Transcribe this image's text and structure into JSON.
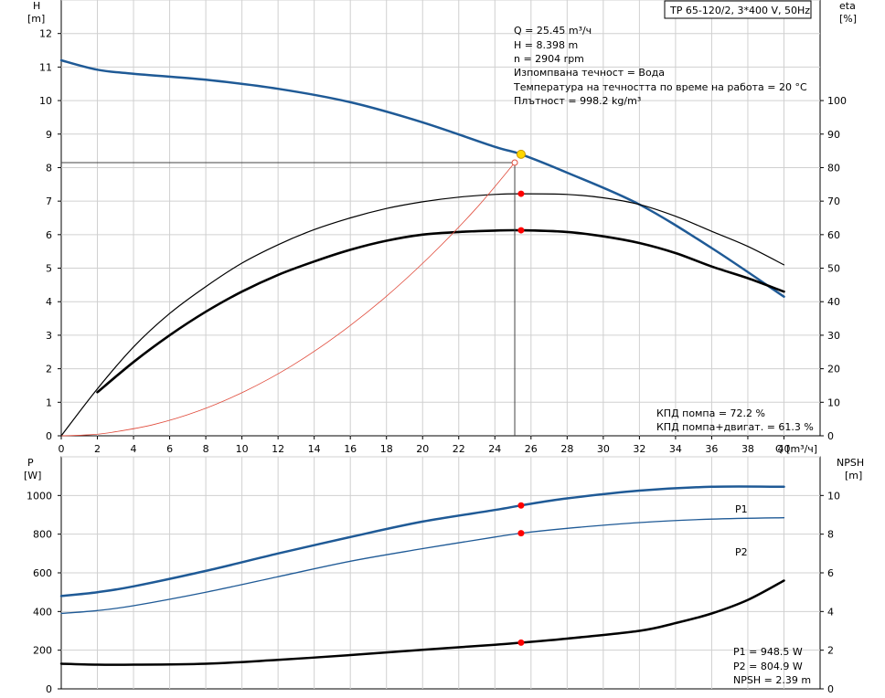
{
  "chart_data": [
    {
      "type": "line",
      "title": "TP 65-120/2, 3*400 V, 50Hz",
      "xlabel": "Q [m³/ч]",
      "xlim": [
        0,
        42
      ],
      "x_ticks": [
        0,
        2,
        4,
        6,
        8,
        10,
        12,
        14,
        16,
        18,
        20,
        22,
        24,
        26,
        28,
        30,
        32,
        34,
        36,
        38,
        40
      ],
      "y_left": {
        "label": "H",
        "unit": "[m]",
        "lim": [
          0,
          13
        ],
        "ticks": [
          0,
          1,
          2,
          3,
          4,
          5,
          6,
          7,
          8,
          9,
          10,
          11,
          12
        ]
      },
      "y_right": {
        "label": "eta",
        "unit": "[%]",
        "lim": [
          0,
          130
        ],
        "ticks": [
          0,
          10,
          20,
          30,
          40,
          50,
          60,
          70,
          80,
          90,
          100
        ]
      },
      "grid": true,
      "series": [
        {
          "name": "H",
          "axis": "left",
          "color": "#1f5a96",
          "x": [
            0,
            2,
            4,
            8,
            12,
            16,
            20,
            24,
            25.45,
            28,
            32,
            36,
            40
          ],
          "y": [
            11.2,
            10.92,
            10.8,
            10.62,
            10.35,
            9.95,
            9.35,
            8.62,
            8.398,
            7.85,
            6.9,
            5.6,
            4.15
          ]
        },
        {
          "name": "КПД помпа",
          "axis": "right",
          "color": "#000000",
          "x": [
            0,
            2,
            4,
            6,
            8,
            10,
            12,
            14,
            16,
            18,
            20,
            22,
            24,
            25.45,
            28,
            30,
            32,
            34,
            36,
            38,
            40
          ],
          "y": [
            0,
            14,
            26.5,
            36.5,
            44.5,
            51.5,
            57,
            61.5,
            65,
            67.8,
            69.8,
            71.2,
            72,
            72.2,
            72,
            71,
            69,
            65.5,
            61,
            56.5,
            51
          ]
        },
        {
          "name": "КПД помпа+двигат.",
          "axis": "right",
          "color": "#000000",
          "x": [
            2,
            4,
            6,
            8,
            10,
            12,
            14,
            16,
            18,
            20,
            22,
            24,
            25.45,
            28,
            30,
            32,
            34,
            36,
            38,
            40
          ],
          "y": [
            13,
            22,
            30,
            37,
            43,
            48,
            52,
            55.5,
            58.2,
            60,
            60.8,
            61.2,
            61.3,
            60.8,
            59.5,
            57.5,
            54.5,
            50.5,
            47,
            43
          ]
        },
        {
          "name": "system",
          "axis": "left",
          "color": "#e04a3a",
          "x": [
            0,
            1.27,
            2.55,
            5.09,
            7.64,
            10.18,
            12.73,
            15.27,
            17.82,
            20.36,
            22.91,
            25.1
          ],
          "y": [
            0,
            0.021,
            0.083,
            0.333,
            0.75,
            1.333,
            2.08,
            3.0,
            4.08,
            5.33,
            6.75,
            8.15
          ]
        }
      ],
      "markers": [
        {
          "x": 25.45,
          "y": 8.398,
          "axis": "left",
          "kind": "duty"
        },
        {
          "x": 25.45,
          "y": 72.2,
          "axis": "right",
          "kind": "point"
        },
        {
          "x": 25.45,
          "y": 61.3,
          "axis": "right",
          "kind": "point"
        },
        {
          "x": 25.1,
          "y": 8.15,
          "axis": "left",
          "kind": "open"
        }
      ],
      "guide": {
        "x": 25.1,
        "y": 8.15
      }
    },
    {
      "type": "line",
      "xlim": [
        0,
        42
      ],
      "y_left": {
        "label": "P",
        "unit": "[W]",
        "lim": [
          0,
          1200
        ],
        "ticks": [
          0,
          200,
          400,
          600,
          800,
          1000
        ]
      },
      "y_right": {
        "label": "NPSH",
        "unit": "[m]",
        "lim": [
          0,
          12
        ],
        "ticks": [
          0,
          2,
          4,
          6,
          8,
          10
        ]
      },
      "grid": true,
      "series": [
        {
          "name": "P1",
          "axis": "left",
          "color": "#1f5a96",
          "x": [
            0,
            2,
            4,
            8,
            12,
            16,
            20,
            24,
            25.45,
            28,
            32,
            36,
            40
          ],
          "y": [
            480,
            500,
            530,
            610,
            700,
            785,
            865,
            925,
            948.5,
            985,
            1025,
            1045,
            1045
          ]
        },
        {
          "name": "P2",
          "axis": "left",
          "color": "#1f5a96",
          "x": [
            0,
            2,
            4,
            8,
            12,
            16,
            20,
            24,
            25.45,
            28,
            32,
            36,
            40
          ],
          "y": [
            390,
            405,
            430,
            500,
            580,
            660,
            725,
            785,
            804.9,
            830,
            860,
            878,
            885
          ]
        },
        {
          "name": "NPSH",
          "axis": "right",
          "color": "#000000",
          "x": [
            0,
            2,
            4,
            8,
            12,
            16,
            20,
            24,
            25.45,
            28,
            32,
            34,
            36,
            38,
            40
          ],
          "y": [
            1.3,
            1.25,
            1.25,
            1.3,
            1.5,
            1.75,
            2.02,
            2.28,
            2.39,
            2.6,
            3.0,
            3.4,
            3.9,
            4.6,
            5.6
          ]
        }
      ],
      "series_labels": [
        {
          "name": "P1",
          "text": "P1"
        },
        {
          "name": "P2",
          "text": "P2"
        }
      ],
      "markers": [
        {
          "x": 25.45,
          "y": 948.5,
          "axis": "left",
          "kind": "point"
        },
        {
          "x": 25.45,
          "y": 804.9,
          "axis": "left",
          "kind": "point"
        },
        {
          "x": 25.45,
          "y": 2.39,
          "axis": "right",
          "kind": "point"
        }
      ]
    }
  ],
  "info": {
    "duty_lines": [
      "Q = 25.45 m³/ч",
      "H = 8.398 m",
      "n = 2904 rpm",
      "Изпомпвана течност = Вода",
      "Температура на течността по време на работа = 20 °C",
      "Плътност = 998.2 kg/m³"
    ],
    "eff_lines": [
      "КПД помпа = 72.2 %",
      "КПД помпа+двигат. = 61.3 %"
    ],
    "power_lines": [
      "P1 = 948.5 W",
      "P2 = 804.9 W",
      "NPSH = 2.39 m"
    ]
  },
  "colors": {
    "curve_blue": "#1f5a96",
    "point_red": "#ff0000",
    "duty_yellow": "#ffd700",
    "system_red": "#e04a3a",
    "grid": "#d0d0d0"
  }
}
